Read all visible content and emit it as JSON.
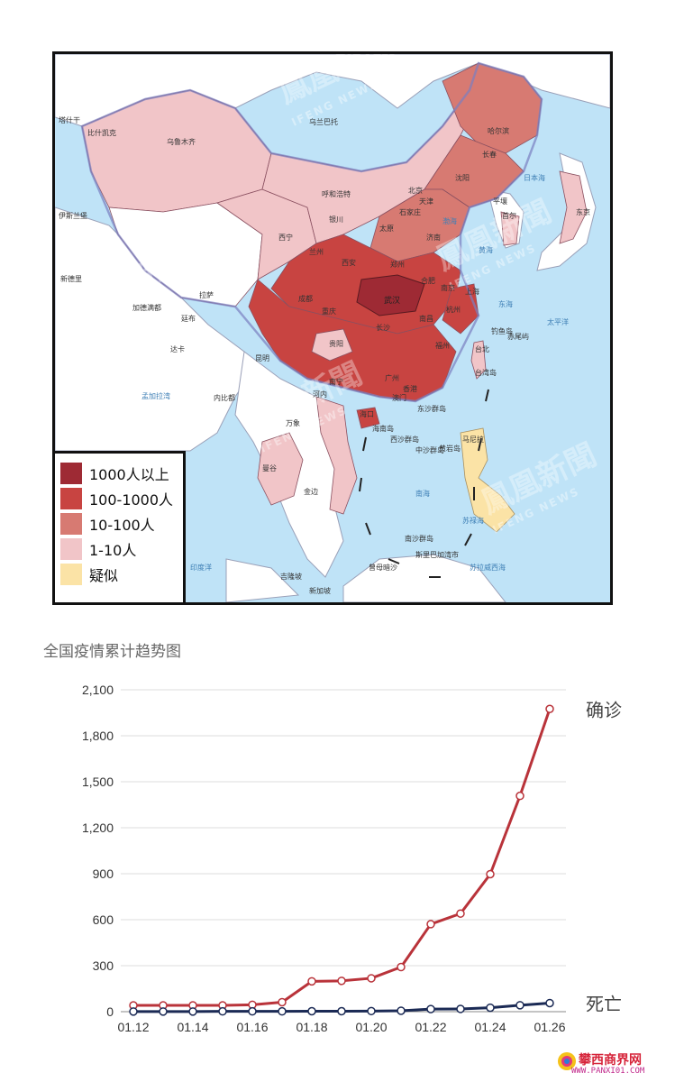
{
  "map": {
    "watermark": "鳳凰新聞",
    "watermark_sub": "IFENG NEWS",
    "legend": [
      {
        "label": "1000人以上",
        "color": "#9e2a34"
      },
      {
        "label": "100-1000人",
        "color": "#c84441"
      },
      {
        "label": "10-100人",
        "color": "#d77a72"
      },
      {
        "label": "1-10人",
        "color": "#f1c5c8"
      },
      {
        "label": "疑似",
        "color": "#fbe3a6"
      }
    ],
    "places": {
      "wuhan": "武汉",
      "hangzhou": "杭州",
      "shanghai": "上海",
      "nanjing": "南京",
      "harbin": "哈尔滨",
      "changchun": "长春",
      "shenyang": "沈阳",
      "beijing": "北京",
      "tianjin": "天津",
      "shijiazhuang": "石家庄",
      "taiyuan": "太原",
      "jinan": "济南",
      "hohhot": "呼和浩特",
      "yinchuan": "银川",
      "lanzhou": "兰州",
      "xining": "西宁",
      "xian": "西安",
      "zhengzhou": "郑州",
      "hefei": "合肥",
      "chengdu": "成都",
      "chongqing": "重庆",
      "changsha": "长沙",
      "nanchang": "南昌",
      "fuzhou": "福州",
      "guiyang": "贵阳",
      "kunming": "昆明",
      "nanning": "南宁",
      "guangzhou": "广州",
      "hongkong": "香港",
      "macau": "澳门",
      "haikou": "海口",
      "taipei": "台北",
      "urumqi": "乌鲁木齐",
      "lhasa": "拉萨",
      "taiwan_island": "台湾岛",
      "hainan_island": "海南岛",
      "ulaanbaatar": "乌兰巴托",
      "pyongyang": "平壤",
      "seoul": "首尔",
      "tokyo": "东京",
      "hanoi": "河内",
      "vientiane": "万象",
      "bangkok": "曼谷",
      "phnompenh": "金边",
      "manila": "马尼拉",
      "kualalumpur": "吉隆坡",
      "singapore": "新加坡",
      "dhaka": "达卡",
      "naypyidaw": "内比都",
      "kathmandu": "加德满都",
      "thimphu": "廷布",
      "newdelhi": "新德里",
      "islamabad": "伊斯兰堡",
      "bishkek": "比什凯克",
      "tashkent": "塔什干",
      "dongsha": "东沙群岛",
      "xisha": "西沙群岛",
      "zhongsha": "中沙群岛",
      "nansha": "南沙群岛",
      "huangyan": "黄岩岛",
      "diaoyu": "钓鱼岛",
      "chiwei": "赤尾屿",
      "bandarseri": "斯里巴加湾市",
      "zengmu": "曾母暗沙"
    },
    "seas": {
      "bohai": "渤海",
      "yellowsea": "黄海",
      "eastsea": "东海",
      "southsea": "南海",
      "japansea": "日本海",
      "pacific": "太平洋",
      "bengal": "孟加拉湾",
      "india_ocean": "印度洋",
      "sulu": "苏禄海",
      "celebes": "苏拉威西海"
    }
  },
  "chart_data": {
    "type": "line",
    "title": "全国疫情累计趋势图",
    "xlabel": "",
    "ylabel": "",
    "x": [
      "01.12",
      "01.13",
      "01.14",
      "01.15",
      "01.16",
      "01.17",
      "01.18",
      "01.19",
      "01.20",
      "01.21",
      "01.22",
      "01.23",
      "01.24",
      "01.25",
      "01.26"
    ],
    "x_tick_labels": [
      "01.12",
      "01.14",
      "01.16",
      "01.18",
      "01.20",
      "01.22",
      "01.24",
      "01.26"
    ],
    "ylim": [
      0,
      2100
    ],
    "y_ticks": [
      0,
      300,
      600,
      900,
      1200,
      1500,
      1800,
      2100
    ],
    "y_tick_labels": [
      "0",
      "300",
      "600",
      "900",
      "1,200",
      "1,500",
      "1,800",
      "2,100"
    ],
    "grid": true,
    "series": [
      {
        "name": "确诊",
        "color": "#b9333a",
        "values": [
          41,
          41,
          41,
          41,
          45,
          62,
          198,
          201,
          218,
          291,
          571,
          640,
          897,
          1408,
          1975
        ]
      },
      {
        "name": "死亡",
        "color": "#1b2a55",
        "values": [
          1,
          1,
          1,
          2,
          2,
          2,
          3,
          3,
          4,
          6,
          17,
          18,
          26,
          42,
          56
        ]
      }
    ]
  },
  "site": {
    "name": "攀西商界网",
    "url": "WWW.PANXI01.COM"
  }
}
